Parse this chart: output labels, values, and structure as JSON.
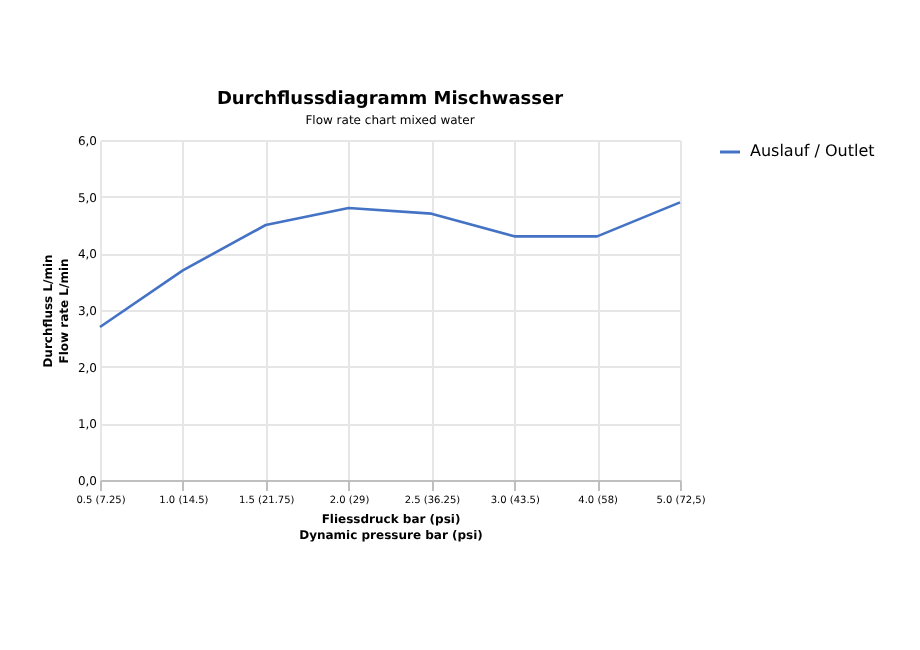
{
  "chart_data": {
    "type": "line",
    "title": "Durchflussdiagramm Mischwasser",
    "subtitle": "Flow rate chart mixed water",
    "xlabel": "Fliessdruck bar (psi)\nDynamic pressure bar (psi)",
    "ylabel": "Durchfluss L/min\nFlow rate L/min",
    "categories": [
      "0.5 (7.25)",
      "1.0 (14.5)",
      "1.5 (21.75)",
      "2.0 (29)",
      "2.5 (36.25)",
      "3.0 (43.5)",
      "4.0 (58)",
      "5.0 (72,5)"
    ],
    "series": [
      {
        "name": "Auslauf / Outlet",
        "color": "#4472c4",
        "values": [
          2.7,
          3.7,
          4.5,
          4.8,
          4.7,
          4.3,
          4.3,
          4.9
        ]
      }
    ],
    "ylim": [
      0,
      6
    ],
    "yticks": [
      {
        "value": 0,
        "label": "0,0"
      },
      {
        "value": 1,
        "label": "1,0"
      },
      {
        "value": 2,
        "label": "2,0"
      },
      {
        "value": 3,
        "label": "3,0"
      },
      {
        "value": 4,
        "label": "4,0"
      },
      {
        "value": 5,
        "label": "5,0"
      },
      {
        "value": 6,
        "label": "6,0"
      }
    ],
    "grid": true,
    "legend": "right",
    "marker": "none",
    "line_style": "solid"
  }
}
